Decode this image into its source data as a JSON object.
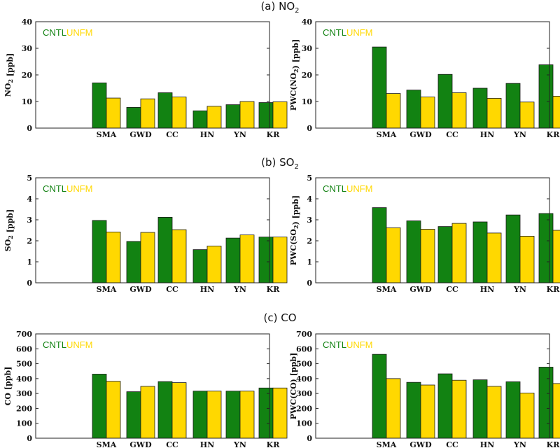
{
  "colors": {
    "CNTL": "#128212",
    "UNFM": "#ffd800"
  },
  "sections": [
    {
      "title": "(a) NO",
      "sub": "2"
    },
    {
      "title": "(b) SO",
      "sub": "2"
    },
    {
      "title": "(c) CO",
      "sub": ""
    }
  ],
  "chart_data": [
    {
      "type": "bar",
      "title": "",
      "ylabel": "NO2 [ppb]",
      "ylim": [
        0,
        40
      ],
      "yticks": [
        0,
        10,
        20,
        30,
        40
      ],
      "categories": [
        "SMA",
        "GWD",
        "CC",
        "HN",
        "YN",
        "KR"
      ],
      "series": [
        {
          "name": "CNTL",
          "values": [
            17.0,
            7.8,
            13.3,
            6.5,
            8.8,
            9.6
          ]
        },
        {
          "name": "UNFM",
          "values": [
            11.3,
            11.0,
            11.7,
            8.2,
            10.0,
            9.9
          ]
        }
      ]
    },
    {
      "type": "bar",
      "title": "",
      "ylabel": "PWC(NO2) [ppb]",
      "ylim": [
        0,
        40
      ],
      "yticks": [
        0,
        10,
        20,
        30,
        40
      ],
      "categories": [
        "SMA",
        "GWD",
        "CC",
        "HN",
        "YN",
        "KR"
      ],
      "series": [
        {
          "name": "CNTL",
          "values": [
            30.5,
            14.3,
            20.2,
            15.0,
            16.8,
            23.8
          ]
        },
        {
          "name": "UNFM",
          "values": [
            13.0,
            11.7,
            13.3,
            11.2,
            9.8,
            12.0
          ]
        }
      ]
    },
    {
      "type": "bar",
      "title": "",
      "ylabel": "SO2 [ppb]",
      "ylim": [
        0,
        5
      ],
      "yticks": [
        0,
        1,
        2,
        3,
        4,
        5
      ],
      "categories": [
        "SMA",
        "GWD",
        "CC",
        "HN",
        "YN",
        "KR"
      ],
      "series": [
        {
          "name": "CNTL",
          "values": [
            2.97,
            1.97,
            3.12,
            1.58,
            2.13,
            2.18
          ]
        },
        {
          "name": "UNFM",
          "values": [
            2.42,
            2.4,
            2.53,
            1.75,
            2.28,
            2.18
          ]
        }
      ]
    },
    {
      "type": "bar",
      "title": "",
      "ylabel": "PWC(SO2) [ppb]",
      "ylim": [
        0,
        5
      ],
      "yticks": [
        0,
        1,
        2,
        3,
        4,
        5
      ],
      "categories": [
        "SMA",
        "GWD",
        "CC",
        "HN",
        "YN",
        "KR"
      ],
      "series": [
        {
          "name": "CNTL",
          "values": [
            3.58,
            2.95,
            2.68,
            2.9,
            3.23,
            3.3
          ]
        },
        {
          "name": "UNFM",
          "values": [
            2.62,
            2.55,
            2.83,
            2.37,
            2.22,
            2.5
          ]
        }
      ]
    },
    {
      "type": "bar",
      "title": "",
      "ylabel": "CO [ppb]",
      "ylim": [
        0,
        700
      ],
      "yticks": [
        0,
        100,
        200,
        300,
        400,
        500,
        600,
        700
      ],
      "categories": [
        "SMA",
        "GWD",
        "CC",
        "HN",
        "YN",
        "KR"
      ],
      "series": [
        {
          "name": "CNTL",
          "values": [
            430,
            312,
            380,
            316,
            316,
            337
          ]
        },
        {
          "name": "UNFM",
          "values": [
            382,
            348,
            373,
            316,
            316,
            337
          ]
        }
      ]
    },
    {
      "type": "bar",
      "title": "",
      "ylabel": "PWC(CO) [ppb]",
      "ylim": [
        0,
        700
      ],
      "yticks": [
        0,
        100,
        200,
        300,
        400,
        500,
        600,
        700
      ],
      "categories": [
        "SMA",
        "GWD",
        "CC",
        "HN",
        "YN",
        "KR"
      ],
      "series": [
        {
          "name": "CNTL",
          "values": [
            563,
            375,
            432,
            392,
            379,
            477
          ]
        },
        {
          "name": "UNFM",
          "values": [
            400,
            357,
            389,
            348,
            303,
            367
          ]
        }
      ]
    }
  ]
}
